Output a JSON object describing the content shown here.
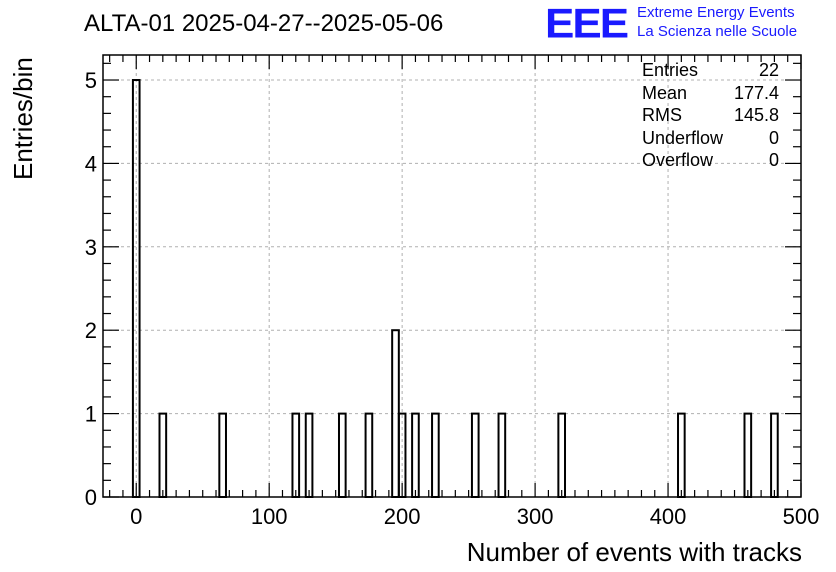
{
  "header": {
    "title": "ALTA-01 2025-04-27--2025-05-06",
    "logo_text": "EEE",
    "logo_line1": "Extreme Energy Events",
    "logo_line2": "La Scienza nelle Scuole"
  },
  "stats": [
    {
      "label": "Entries",
      "value": "22"
    },
    {
      "label": "Mean",
      "value": "177.4"
    },
    {
      "label": "RMS",
      "value": "145.8"
    },
    {
      "label": "Underflow",
      "value": "0"
    },
    {
      "label": "Overflow",
      "value": "0"
    }
  ],
  "colors": {
    "logo": "#1a1aff",
    "line": "#000000",
    "grid": "#b0b0b0"
  },
  "chart_data": {
    "type": "bar",
    "title": "ALTA-01 2025-04-27--2025-05-06",
    "xlabel": "Number of events with tracks",
    "ylabel": "Entries/bin",
    "xlim": [
      -25,
      500
    ],
    "ylim": [
      0,
      5.3
    ],
    "bin_width": 5,
    "x_ticks": [
      0,
      100,
      200,
      300,
      400,
      500
    ],
    "y_ticks": [
      0,
      1,
      2,
      3,
      4,
      5
    ],
    "grid": true,
    "bins": [
      {
        "x": 0,
        "count": 5
      },
      {
        "x": 20,
        "count": 1
      },
      {
        "x": 65,
        "count": 1
      },
      {
        "x": 120,
        "count": 1
      },
      {
        "x": 130,
        "count": 1
      },
      {
        "x": 155,
        "count": 1
      },
      {
        "x": 175,
        "count": 1
      },
      {
        "x": 195,
        "count": 2
      },
      {
        "x": 200,
        "count": 1
      },
      {
        "x": 210,
        "count": 1
      },
      {
        "x": 225,
        "count": 1
      },
      {
        "x": 255,
        "count": 1
      },
      {
        "x": 275,
        "count": 1
      },
      {
        "x": 320,
        "count": 1
      },
      {
        "x": 410,
        "count": 1
      },
      {
        "x": 460,
        "count": 1
      },
      {
        "x": 480,
        "count": 1
      }
    ]
  }
}
